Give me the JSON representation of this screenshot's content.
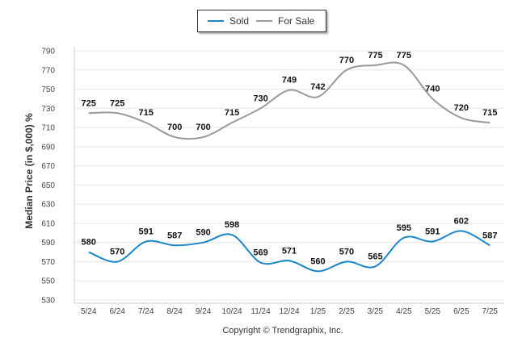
{
  "chart_data": {
    "type": "line",
    "ylabel": "Median Price (in $,000) %",
    "ylim": [
      530,
      790
    ],
    "yticks": [
      530,
      550,
      570,
      590,
      610,
      630,
      650,
      670,
      690,
      710,
      730,
      750,
      770,
      790
    ],
    "categories": [
      "5/24",
      "6/24",
      "7/24",
      "8/24",
      "9/24",
      "10/24",
      "11/24",
      "12/24",
      "1/25",
      "2/25",
      "3/25",
      "4/25",
      "5/25",
      "6/25",
      "7/25"
    ],
    "series": [
      {
        "name": "Sold",
        "color": "#1a86c8",
        "values": [
          580,
          570,
          591,
          587,
          590,
          598,
          569,
          571,
          560,
          570,
          565,
          595,
          591,
          602,
          587
        ]
      },
      {
        "name": "For Sale",
        "color": "#999999",
        "values": [
          725,
          725,
          715,
          700,
          700,
          715,
          730,
          749,
          742,
          770,
          775,
          775,
          740,
          720,
          715
        ]
      }
    ],
    "grid": "horizontal",
    "legend_position": "top-center"
  },
  "legend": {
    "sold_label": "Sold",
    "for_sale_label": "For Sale"
  },
  "footer": {
    "copyright": "Copyright © Trendgraphix, Inc."
  }
}
